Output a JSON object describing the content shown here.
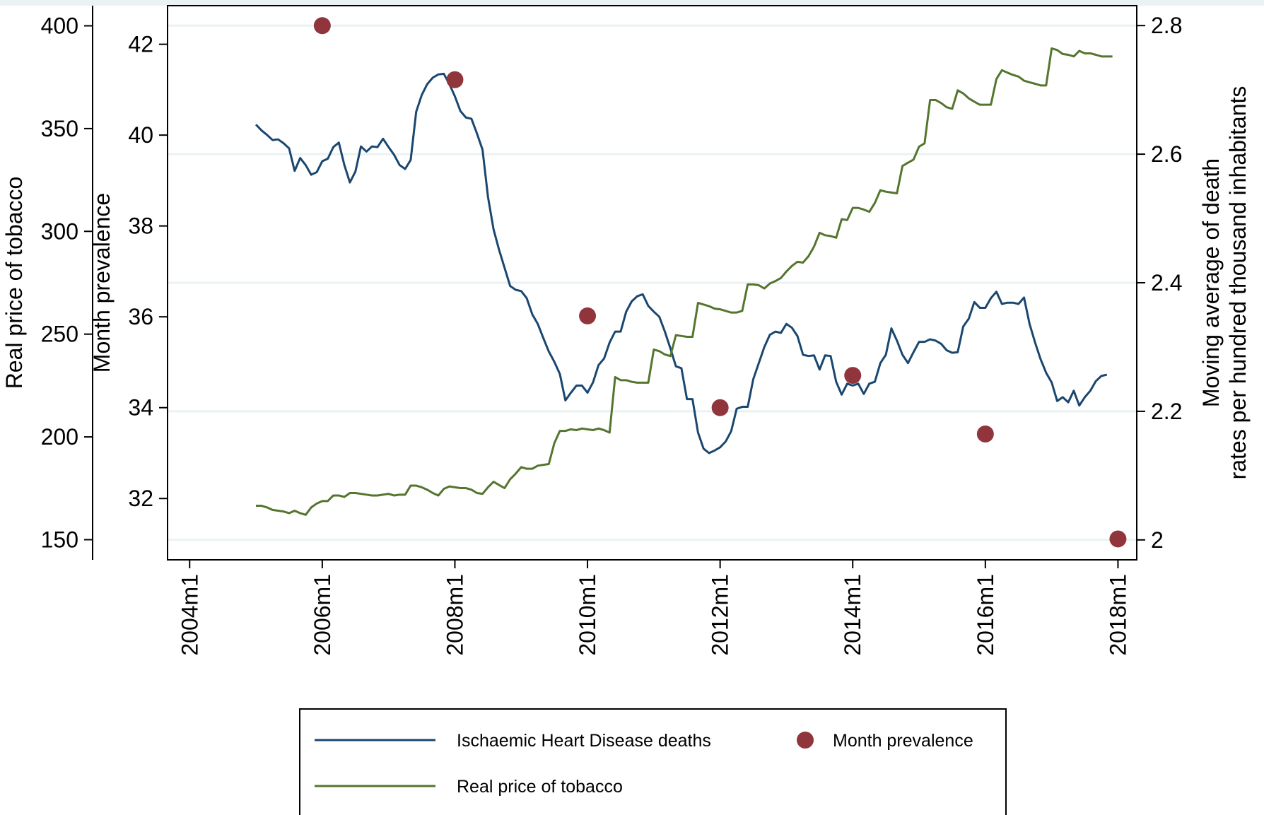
{
  "chart_data": {
    "type": "line",
    "xlim": [
      524,
      699.4
    ],
    "xticks": [
      {
        "value": 528,
        "label": "2004m1"
      },
      {
        "value": 552,
        "label": "2006m1"
      },
      {
        "value": 576,
        "label": "2008m1"
      },
      {
        "value": 600,
        "label": "2010m1"
      },
      {
        "value": 624,
        "label": "2012m1"
      },
      {
        "value": 648,
        "label": "2014m1"
      },
      {
        "value": 672,
        "label": "2016m1"
      },
      {
        "value": 696,
        "label": "2018m1"
      }
    ],
    "ylabel": "Real price of tobacco",
    "ylim": [
      140.2,
      409.8
    ],
    "yticks": [
      150,
      200,
      250,
      300,
      350,
      400
    ],
    "y3label": "Month prevalence",
    "y3lim": [
      30.65,
      42.85
    ],
    "y3ticks": [
      32,
      34,
      36,
      38,
      40,
      42
    ],
    "y2label": [
      "Moving average of death",
      "rates per hundred thousand inhabitants"
    ],
    "y2lim": [
      1.969,
      2.831
    ],
    "y2ticks": [
      2,
      2.2,
      2.4,
      2.6,
      2.8
    ],
    "grid": "y2",
    "legend": "bottom",
    "series": [
      {
        "name": "Ischaemic Heart Disease deaths",
        "type": "line",
        "axis": "y2",
        "color": "#1a476f",
        "x": [
          540,
          541,
          542,
          543,
          544,
          545,
          546,
          547,
          548,
          549,
          550,
          551,
          552,
          553,
          554,
          555,
          556,
          557,
          558,
          559,
          560,
          561,
          562,
          563,
          564,
          565,
          566,
          567,
          568,
          569,
          570,
          571,
          572,
          573,
          574,
          575,
          576,
          577,
          578,
          579,
          580,
          581,
          582,
          583,
          584,
          585,
          586,
          587,
          588,
          589,
          590,
          591,
          592,
          593,
          594,
          595,
          596,
          597,
          598,
          599,
          600,
          601,
          602,
          603,
          604,
          605,
          606,
          607,
          608,
          609,
          610,
          611,
          612,
          613,
          614,
          615,
          616,
          617,
          618,
          619,
          620,
          621,
          622,
          623,
          624,
          625,
          626,
          627,
          628,
          629,
          630,
          631,
          632,
          633,
          634,
          635,
          636,
          637,
          638,
          639,
          640,
          641,
          642,
          643,
          644,
          645,
          646,
          647,
          648,
          649,
          650,
          651,
          652,
          653,
          654,
          655,
          656,
          657,
          658,
          659,
          660,
          661,
          662,
          663,
          664,
          665,
          666,
          667,
          668,
          669,
          670,
          671,
          672,
          673,
          674,
          675,
          676,
          677,
          678,
          679,
          680,
          681,
          682,
          683,
          684,
          685,
          686,
          687,
          688,
          689,
          690,
          691,
          692,
          693,
          694
        ],
        "values": [
          2.646,
          2.637,
          2.63,
          2.622,
          2.623,
          2.617,
          2.609,
          2.574,
          2.594,
          2.583,
          2.568,
          2.572,
          2.589,
          2.593,
          2.611,
          2.618,
          2.583,
          2.556,
          2.573,
          2.612,
          2.604,
          2.612,
          2.611,
          2.624,
          2.611,
          2.599,
          2.583,
          2.577,
          2.591,
          2.666,
          2.692,
          2.709,
          2.719,
          2.724,
          2.725,
          2.709,
          2.69,
          2.667,
          2.657,
          2.655,
          2.632,
          2.607,
          2.533,
          2.483,
          2.451,
          2.423,
          2.395,
          2.389,
          2.387,
          2.376,
          2.351,
          2.336,
          2.314,
          2.293,
          2.277,
          2.258,
          2.217,
          2.229,
          2.24,
          2.24,
          2.229,
          2.245,
          2.272,
          2.282,
          2.307,
          2.324,
          2.324,
          2.355,
          2.371,
          2.379,
          2.382,
          2.364,
          2.355,
          2.347,
          2.324,
          2.298,
          2.27,
          2.267,
          2.219,
          2.219,
          2.167,
          2.142,
          2.135,
          2.139,
          2.144,
          2.153,
          2.169,
          2.204,
          2.207,
          2.207,
          2.25,
          2.275,
          2.3,
          2.319,
          2.324,
          2.322,
          2.336,
          2.33,
          2.317,
          2.288,
          2.286,
          2.287,
          2.265,
          2.287,
          2.286,
          2.246,
          2.226,
          2.243,
          2.24,
          2.243,
          2.227,
          2.243,
          2.246,
          2.275,
          2.288,
          2.329,
          2.31,
          2.288,
          2.275,
          2.292,
          2.308,
          2.308,
          2.312,
          2.31,
          2.305,
          2.295,
          2.291,
          2.292,
          2.332,
          2.344,
          2.37,
          2.361,
          2.361,
          2.376,
          2.386,
          2.367,
          2.369,
          2.369,
          2.367,
          2.377,
          2.336,
          2.307,
          2.281,
          2.26,
          2.245,
          2.216,
          2.222,
          2.214,
          2.232,
          2.209,
          2.222,
          2.232,
          2.247,
          2.255,
          2.257
        ]
      },
      {
        "name": "Month prevalence",
        "type": "scatter",
        "axis": "y3",
        "color": "#90353b",
        "x": [
          552,
          576,
          600,
          624,
          648,
          672,
          696
        ],
        "values": [
          42.41,
          41.22,
          36.02,
          34.0,
          34.71,
          33.42,
          31.11
        ]
      },
      {
        "name": "Real price of tobacco",
        "type": "line",
        "axis": "y",
        "color": "#55752f",
        "x": [
          540,
          541,
          542,
          543,
          544,
          545,
          546,
          547,
          548,
          549,
          550,
          551,
          552,
          553,
          554,
          555,
          556,
          557,
          558,
          559,
          560,
          561,
          562,
          563,
          564,
          565,
          566,
          567,
          568,
          569,
          570,
          571,
          572,
          573,
          574,
          575,
          576,
          577,
          578,
          579,
          580,
          581,
          582,
          583,
          584,
          585,
          586,
          587,
          588,
          589,
          590,
          591,
          592,
          593,
          594,
          595,
          596,
          597,
          598,
          599,
          600,
          601,
          602,
          603,
          604,
          605,
          606,
          607,
          608,
          609,
          610,
          611,
          612,
          613,
          614,
          615,
          616,
          617,
          618,
          619,
          620,
          621,
          622,
          623,
          624,
          625,
          626,
          627,
          628,
          629,
          630,
          631,
          632,
          633,
          634,
          635,
          636,
          637,
          638,
          639,
          640,
          641,
          642,
          643,
          644,
          645,
          646,
          647,
          648,
          649,
          650,
          651,
          652,
          653,
          654,
          655,
          656,
          657,
          658,
          659,
          660,
          661,
          662,
          663,
          664,
          665,
          666,
          667,
          668,
          669,
          670,
          671,
          672,
          673,
          674,
          675,
          676,
          677,
          678,
          679,
          680,
          681,
          682,
          683,
          684,
          685,
          686,
          687,
          688,
          689,
          690,
          691,
          692,
          693,
          694,
          695
        ],
        "values": [
          166.5,
          166.5,
          165.7,
          164.5,
          164.1,
          163.7,
          162.9,
          164.1,
          162.9,
          162.1,
          165.7,
          167.6,
          168.8,
          168.8,
          171.5,
          171.5,
          170.8,
          172.7,
          172.7,
          172.3,
          171.9,
          171.5,
          171.5,
          171.9,
          172.3,
          171.5,
          171.9,
          171.9,
          176.3,
          176.3,
          175.5,
          174.3,
          172.7,
          171.5,
          174.7,
          175.9,
          175.5,
          175.1,
          175.1,
          174.3,
          172.7,
          172.3,
          175.5,
          178.2,
          176.6,
          175.1,
          179.4,
          182.1,
          185.3,
          184.5,
          184.5,
          186.0,
          186.4,
          186.8,
          197.0,
          202.9,
          202.9,
          203.7,
          203.3,
          204.1,
          203.7,
          203.3,
          204.1,
          203.3,
          202.1,
          229.1,
          227.6,
          227.6,
          226.8,
          226.4,
          226.4,
          226.4,
          242.5,
          241.7,
          240.1,
          239.3,
          249.5,
          249.1,
          248.7,
          248.7,
          265.2,
          264.4,
          263.6,
          262.4,
          262.1,
          261.3,
          260.5,
          260.5,
          261.3,
          274.2,
          274.2,
          273.8,
          272.2,
          274.6,
          275.8,
          277.3,
          280.5,
          283.2,
          285.2,
          284.8,
          287.9,
          292.6,
          299.3,
          298.1,
          297.7,
          296.9,
          305.9,
          305.5,
          311.4,
          311.4,
          310.6,
          309.5,
          313.8,
          320.0,
          319.3,
          318.9,
          318.5,
          331.8,
          333.4,
          334.9,
          341.2,
          342.8,
          363.9,
          363.9,
          362.4,
          360.4,
          359.6,
          368.6,
          367.1,
          364.7,
          363.1,
          361.6,
          361.6,
          361.6,
          374.1,
          378.4,
          377.2,
          376.1,
          375.3,
          373.3,
          372.5,
          371.8,
          371.0,
          371.0,
          389.0,
          388.2,
          386.3,
          385.9,
          385.1,
          387.8,
          386.6,
          386.6,
          385.9,
          385.1,
          385.1,
          385.1
        ]
      }
    ]
  }
}
